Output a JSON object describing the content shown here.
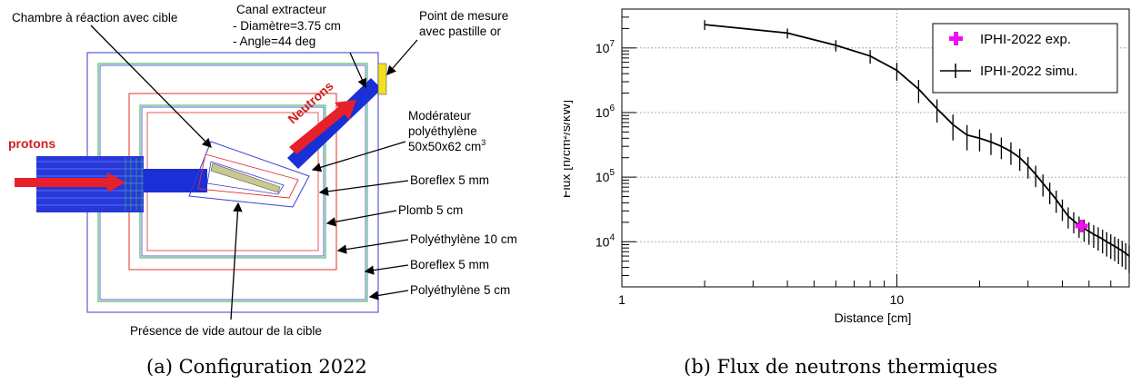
{
  "panel_a": {
    "caption": "(a) Configuration 2022",
    "labels": {
      "chamber": "Chambre à réaction avec cible",
      "canal_title": "Canal extracteur",
      "canal_diam": "- Diamètre=3.75 cm",
      "canal_angle": "- Angle=44 deg",
      "point_line1": "Point de mesure",
      "point_line2": "avec pastille or",
      "protons": "protons",
      "neutrons": "Neutrons",
      "moderator_line1": "Modérateur",
      "moderator_line2": "polyéthylène",
      "moderator_line3": "50x50x62 cm",
      "moderator_sup": "3",
      "boreflex_inner": "Boreflex 5 mm",
      "plomb": "Plomb  5 cm",
      "poly10": "Polyéthylène 10 cm",
      "boreflex_outer": "Boreflex 5 mm",
      "poly5": "Polyéthylène 5 cm",
      "vide": "Présence de vide autour de la cible"
    },
    "colors": {
      "protons": "#e8202a",
      "beam": "#1a2fd6",
      "layers": [
        "#3b3bd6",
        "#2bb34a",
        "#e23030",
        "#3b3bd6",
        "#2bb34a",
        "#e23030",
        "#33a050"
      ]
    }
  },
  "panel_b": {
    "caption": "(b) Flux de neutrons thermiques",
    "legend": {
      "exp": "IPHI-2022 exp.",
      "simu": "IPHI-2022 simu."
    },
    "colors": {
      "exp": "#ee11ee",
      "simu": "#000000"
    },
    "chart_data": {
      "type": "line",
      "xlabel": "Distance [cm]",
      "ylabel": "Flux [n/cm²/s/kW]",
      "x_scale": "log",
      "y_scale": "log",
      "xlim": [
        1,
        70
      ],
      "ylim": [
        2000,
        40000000
      ],
      "x_tick_labels": [
        {
          "v": 1,
          "t": "1"
        },
        {
          "v": 10,
          "t": "10"
        }
      ],
      "y_tick_labels": [
        {
          "v": 10000,
          "m": "10",
          "e": "4"
        },
        {
          "v": 100000,
          "m": "10",
          "e": "5"
        },
        {
          "v": 1000000,
          "m": "10",
          "e": "6"
        },
        {
          "v": 10000000,
          "m": "10",
          "e": "7"
        }
      ],
      "grid": true,
      "legend_position": "top-right",
      "series": [
        {
          "name": "IPHI-2022 simu.",
          "x": [
            2,
            4,
            6,
            8,
            10,
            12,
            14,
            16,
            18,
            20,
            22,
            24,
            26,
            28,
            30,
            32,
            34,
            36,
            38,
            40,
            42,
            44,
            46,
            48,
            50,
            52,
            54,
            56,
            58,
            60,
            62,
            64,
            66,
            68,
            70
          ],
          "y": [
            23000000,
            17000000,
            11000000,
            7500000,
            4500000,
            2300000,
            1150000,
            650000,
            450000,
            400000,
            350000,
            300000,
            250000,
            200000,
            150000,
            110000,
            80000,
            60000,
            45000,
            33000,
            25000,
            21000,
            18000,
            16000,
            14500,
            13000,
            12000,
            11000,
            10000,
            9200,
            8500,
            7800,
            7200,
            6600,
            6000
          ],
          "err": [
            4000000,
            3000000,
            2200000,
            1800000,
            1400000,
            900000,
            450000,
            280000,
            190000,
            150000,
            130000,
            110000,
            95000,
            75000,
            55000,
            40000,
            30000,
            22000,
            17000,
            12000,
            9000,
            7500,
            6500,
            6000,
            5500,
            5000,
            4700,
            4400,
            4100,
            3800,
            3500,
            3300,
            3100,
            2900,
            2700
          ]
        },
        {
          "name": "IPHI-2022 exp.",
          "x": [
            47
          ],
          "y": [
            17500
          ],
          "err": [
            2500
          ]
        }
      ]
    }
  }
}
